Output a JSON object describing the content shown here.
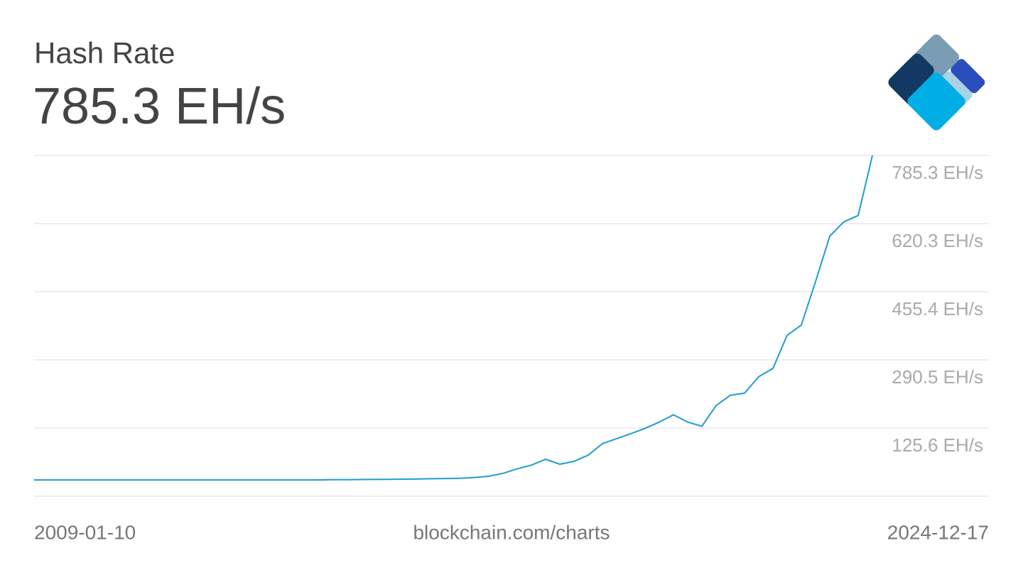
{
  "chart_data": {
    "type": "line",
    "title": "Hash Rate",
    "subtitle": "785.3 EH/s",
    "source": "blockchain.com/charts",
    "xlim": [
      "2009-01-10",
      "2024-12-17"
    ],
    "values": [
      0,
      0,
      0,
      0,
      0,
      0,
      0,
      0,
      0,
      0,
      0,
      0,
      0,
      0,
      0,
      0,
      0,
      0,
      0,
      0,
      0,
      0.5,
      0.7,
      1,
      1.2,
      1.5,
      2,
      2.5,
      3,
      3.5,
      4,
      6,
      9,
      16,
      27,
      36,
      50,
      38,
      45,
      60,
      88,
      100,
      112,
      125,
      140,
      158,
      140,
      130,
      180,
      205,
      210,
      250,
      270,
      350,
      375,
      480,
      590,
      625,
      640,
      785.3
    ],
    "color": "#1f9cd1",
    "ylim": [
      -39.3,
      785.3
    ],
    "yticks": [
      {
        "value": 125.6,
        "label": "125.6 EH/s"
      },
      {
        "value": 290.5,
        "label": "290.5 EH/s"
      },
      {
        "value": 455.4,
        "label": "455.4 EH/s"
      },
      {
        "value": 620.3,
        "label": "620.3 EH/s"
      },
      {
        "value": 785.3,
        "label": "785.3 EH/s"
      }
    ],
    "grid": true
  }
}
